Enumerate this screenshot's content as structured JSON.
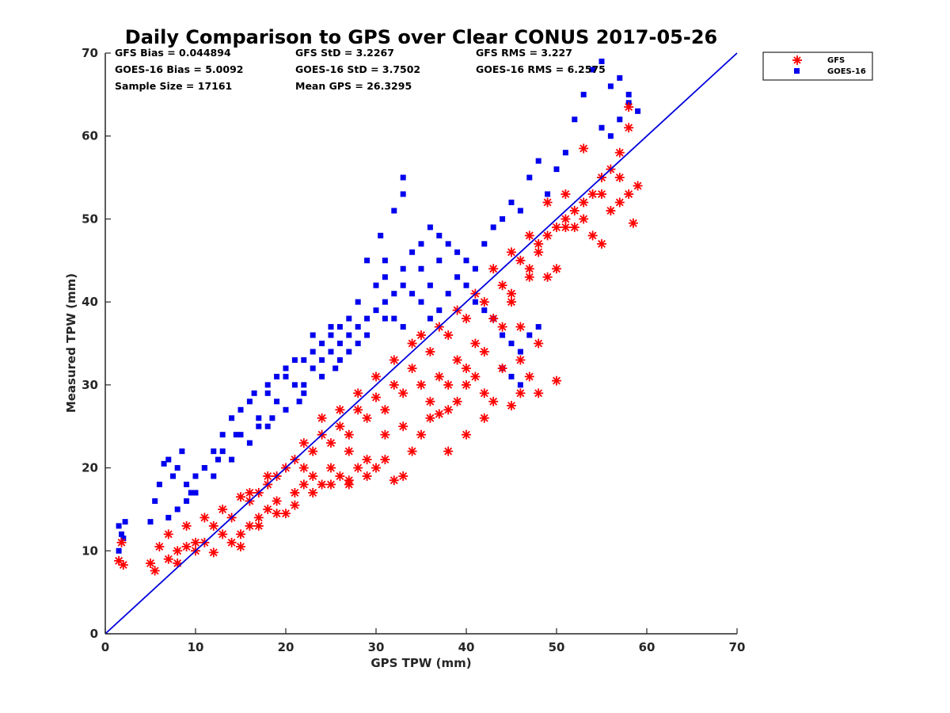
{
  "chart_data": {
    "type": "scatter",
    "title": "Daily Comparison to GPS over Clear CONUS 2017-05-26",
    "xlabel": "GPS TPW (mm)",
    "ylabel": "Measured TPW (mm)",
    "xlim": [
      0,
      70
    ],
    "ylim": [
      0,
      70
    ],
    "xticks": [
      "0",
      "10",
      "20",
      "30",
      "40",
      "50",
      "60",
      "70"
    ],
    "yticks": [
      "0",
      "10",
      "20",
      "30",
      "40",
      "50",
      "60",
      "70"
    ],
    "legend_position": "outside-top-right",
    "stats": {
      "gfs_bias": "GFS Bias = 0.044894",
      "goes_bias": "GOES-16 Bias = 5.0092",
      "sample_size": "Sample Size = 17161",
      "gfs_std": "GFS StD = 3.2267",
      "goes_std": "GOES-16 StD = 3.7502",
      "mean_gps": "Mean GPS = 26.3295",
      "gfs_rms": "GFS RMS = 3.227",
      "goes_rms": "GOES-16 RMS = 6.2575"
    },
    "reference_line": {
      "name": "1:1 line",
      "x": [
        0,
        70
      ],
      "y": [
        0,
        70
      ],
      "color": "#0000dd"
    },
    "series": [
      {
        "name": "GFS",
        "marker": "asterisk",
        "color": "#ff0000",
        "points": [
          [
            1.5,
            8.8
          ],
          [
            2,
            8.3
          ],
          [
            1.8,
            11
          ],
          [
            5,
            8.5
          ],
          [
            5.5,
            7.6
          ],
          [
            6,
            10.5
          ],
          [
            7,
            9
          ],
          [
            8,
            8.5
          ],
          [
            9,
            10.5
          ],
          [
            10,
            10
          ],
          [
            11,
            11
          ],
          [
            12,
            9.8
          ],
          [
            13,
            12
          ],
          [
            14,
            11
          ],
          [
            15,
            10.5
          ],
          [
            16,
            13
          ],
          [
            17,
            14
          ],
          [
            18,
            15
          ],
          [
            19,
            16
          ],
          [
            20,
            14.5
          ],
          [
            21,
            17
          ],
          [
            22,
            18
          ],
          [
            23,
            19
          ],
          [
            24,
            18
          ],
          [
            25,
            20
          ],
          [
            26,
            19
          ],
          [
            27,
            18.5
          ],
          [
            28,
            20
          ],
          [
            29,
            21
          ],
          [
            30,
            20
          ],
          [
            31,
            21
          ],
          [
            32,
            18.5
          ],
          [
            33,
            19
          ],
          [
            34,
            22
          ],
          [
            35,
            24
          ],
          [
            36,
            26
          ],
          [
            37,
            26.5
          ],
          [
            38,
            27
          ],
          [
            39,
            28
          ],
          [
            40,
            30
          ],
          [
            41,
            31
          ],
          [
            42,
            29
          ],
          [
            43,
            28
          ],
          [
            44,
            32
          ],
          [
            45,
            27.5
          ],
          [
            46,
            29
          ],
          [
            47,
            31
          ],
          [
            48,
            29
          ],
          [
            50,
            30.5
          ],
          [
            44,
            37
          ],
          [
            45,
            40
          ],
          [
            46,
            37
          ],
          [
            47,
            44
          ],
          [
            48,
            46
          ],
          [
            49,
            43
          ],
          [
            50,
            44
          ],
          [
            51,
            49
          ],
          [
            52,
            49
          ],
          [
            53,
            50
          ],
          [
            54,
            48
          ],
          [
            55,
            47
          ],
          [
            56,
            51
          ],
          [
            57,
            52
          ],
          [
            58,
            53
          ],
          [
            58.5,
            49.5
          ],
          [
            59,
            54
          ],
          [
            55,
            55
          ],
          [
            56,
            56
          ],
          [
            57,
            58
          ],
          [
            58,
            61
          ],
          [
            58,
            63.5
          ],
          [
            53,
            58.5
          ],
          [
            22,
            23
          ],
          [
            24,
            24
          ],
          [
            26,
            25
          ],
          [
            28,
            27
          ],
          [
            30,
            28.5
          ],
          [
            32,
            30
          ],
          [
            34,
            32
          ],
          [
            36,
            34
          ],
          [
            38,
            36
          ],
          [
            40,
            38
          ],
          [
            42,
            40
          ],
          [
            44,
            42
          ],
          [
            46,
            45
          ],
          [
            48,
            47
          ],
          [
            50,
            49
          ],
          [
            52,
            51
          ],
          [
            54,
            53
          ],
          [
            20,
            20
          ],
          [
            18,
            18
          ],
          [
            16,
            16
          ],
          [
            14,
            14
          ],
          [
            12,
            13
          ],
          [
            10,
            11
          ],
          [
            8,
            10
          ],
          [
            7,
            12
          ],
          [
            9,
            13
          ],
          [
            11,
            14
          ],
          [
            13,
            15
          ],
          [
            15,
            16.5
          ],
          [
            17,
            17
          ],
          [
            19,
            19
          ],
          [
            21,
            21
          ],
          [
            23,
            22
          ],
          [
            25,
            23
          ],
          [
            27,
            24
          ],
          [
            29,
            26
          ],
          [
            31,
            27
          ],
          [
            33,
            29
          ],
          [
            35,
            30
          ],
          [
            37,
            31
          ],
          [
            39,
            33
          ],
          [
            41,
            35
          ],
          [
            43,
            38
          ],
          [
            45,
            41
          ],
          [
            47,
            43
          ],
          [
            49,
            48
          ],
          [
            51,
            50
          ],
          [
            53,
            52
          ],
          [
            55,
            53
          ],
          [
            57,
            55
          ],
          [
            35,
            36
          ],
          [
            37,
            37
          ],
          [
            39,
            39
          ],
          [
            41,
            41
          ],
          [
            43,
            44
          ],
          [
            45,
            46
          ],
          [
            47,
            48
          ],
          [
            49,
            52
          ],
          [
            51,
            53
          ],
          [
            26,
            27
          ],
          [
            28,
            29
          ],
          [
            30,
            31
          ],
          [
            32,
            33
          ],
          [
            34,
            35
          ],
          [
            24,
            26
          ],
          [
            22,
            20
          ],
          [
            27,
            22
          ],
          [
            31,
            24
          ],
          [
            33,
            25
          ],
          [
            36,
            28
          ],
          [
            38,
            30
          ],
          [
            40,
            32
          ],
          [
            42,
            34
          ],
          [
            46,
            33
          ],
          [
            48,
            35
          ],
          [
            38,
            22
          ],
          [
            40,
            24
          ],
          [
            42,
            26
          ],
          [
            15,
            12
          ],
          [
            17,
            13
          ],
          [
            19,
            14.5
          ],
          [
            21,
            15.5
          ],
          [
            23,
            17
          ],
          [
            25,
            18
          ],
          [
            27,
            18
          ],
          [
            29,
            19
          ],
          [
            16,
            17
          ],
          [
            18,
            19
          ]
        ]
      },
      {
        "name": "GOES-16",
        "marker": "square",
        "color": "#0000ee",
        "points": [
          [
            1.5,
            10
          ],
          [
            1.8,
            12
          ],
          [
            2.2,
            13.5
          ],
          [
            1.5,
            13
          ],
          [
            2,
            11.5
          ],
          [
            5,
            13.5
          ],
          [
            5.5,
            16
          ],
          [
            6,
            18
          ],
          [
            6.5,
            20.5
          ],
          [
            7,
            21
          ],
          [
            7.5,
            19
          ],
          [
            8,
            20
          ],
          [
            8.5,
            22
          ],
          [
            9,
            18
          ],
          [
            9.5,
            17
          ],
          [
            10,
            19
          ],
          [
            11,
            20
          ],
          [
            12,
            22
          ],
          [
            12.5,
            21
          ],
          [
            13,
            24
          ],
          [
            14,
            26
          ],
          [
            14.5,
            24
          ],
          [
            15,
            27
          ],
          [
            16,
            28
          ],
          [
            16.5,
            29
          ],
          [
            17,
            25
          ],
          [
            18,
            30
          ],
          [
            18.5,
            26
          ],
          [
            19,
            31
          ],
          [
            20,
            32
          ],
          [
            21,
            33
          ],
          [
            21.5,
            28
          ],
          [
            22,
            30
          ],
          [
            23,
            34
          ],
          [
            24,
            35
          ],
          [
            25,
            36
          ],
          [
            25.5,
            32
          ],
          [
            26,
            37
          ],
          [
            27,
            38
          ],
          [
            28,
            40
          ],
          [
            29,
            45
          ],
          [
            30,
            42
          ],
          [
            31,
            43
          ],
          [
            32,
            41
          ],
          [
            33,
            44
          ],
          [
            33,
            55
          ],
          [
            33,
            53
          ],
          [
            32,
            51
          ],
          [
            30.5,
            48
          ],
          [
            31,
            45
          ],
          [
            34,
            46
          ],
          [
            35,
            47
          ],
          [
            36,
            49
          ],
          [
            37,
            48
          ],
          [
            38,
            47
          ],
          [
            39,
            46
          ],
          [
            40,
            45
          ],
          [
            41,
            44
          ],
          [
            42,
            47
          ],
          [
            43,
            49
          ],
          [
            44,
            50
          ],
          [
            45,
            52
          ],
          [
            46,
            51
          ],
          [
            47,
            55
          ],
          [
            48,
            57
          ],
          [
            49,
            53
          ],
          [
            50,
            56
          ],
          [
            51,
            58
          ],
          [
            52,
            62
          ],
          [
            53,
            65
          ],
          [
            54,
            68
          ],
          [
            55,
            69
          ],
          [
            56,
            66
          ],
          [
            57,
            67
          ],
          [
            58,
            65
          ],
          [
            59,
            63
          ],
          [
            55,
            61
          ],
          [
            56,
            60
          ],
          [
            57,
            62
          ],
          [
            58,
            64
          ],
          [
            35,
            40
          ],
          [
            36,
            42
          ],
          [
            37,
            39
          ],
          [
            38,
            41
          ],
          [
            39,
            43
          ],
          [
            40,
            42
          ],
          [
            41,
            40
          ],
          [
            42,
            39
          ],
          [
            43,
            38
          ],
          [
            44,
            36
          ],
          [
            45,
            35
          ],
          [
            46,
            34
          ],
          [
            44,
            32
          ],
          [
            45,
            31
          ],
          [
            46,
            30
          ],
          [
            47,
            36
          ],
          [
            48,
            37
          ],
          [
            28,
            35
          ],
          [
            26,
            33
          ],
          [
            24,
            31
          ],
          [
            22,
            29
          ],
          [
            20,
            27
          ],
          [
            18,
            25
          ],
          [
            16,
            23
          ],
          [
            14,
            21
          ],
          [
            12,
            19
          ],
          [
            10,
            17
          ],
          [
            8,
            15
          ],
          [
            27,
            36
          ],
          [
            29,
            38
          ],
          [
            31,
            40
          ],
          [
            33,
            42
          ],
          [
            35,
            44
          ],
          [
            37,
            45
          ],
          [
            25,
            34
          ],
          [
            23,
            32
          ],
          [
            21,
            30
          ],
          [
            19,
            28
          ],
          [
            17,
            26
          ],
          [
            15,
            24
          ],
          [
            13,
            22
          ],
          [
            11,
            20
          ],
          [
            9,
            16
          ],
          [
            7,
            14
          ],
          [
            30,
            39
          ],
          [
            32,
            38
          ],
          [
            34,
            41
          ],
          [
            24,
            33
          ],
          [
            26,
            35
          ],
          [
            28,
            37
          ],
          [
            20,
            31
          ],
          [
            22,
            33
          ],
          [
            18,
            29
          ],
          [
            23,
            36
          ],
          [
            25,
            37
          ],
          [
            27,
            34
          ],
          [
            29,
            36
          ],
          [
            31,
            38
          ],
          [
            33,
            37
          ],
          [
            36,
            38
          ]
        ]
      }
    ]
  }
}
